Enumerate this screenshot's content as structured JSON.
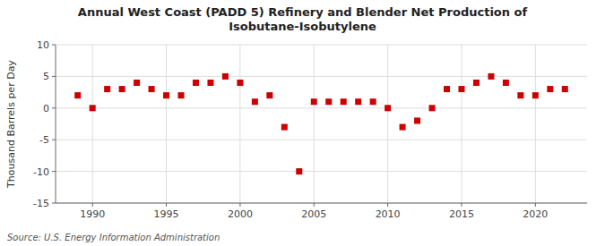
{
  "chart_data": {
    "type": "scatter",
    "title": "Annual West Coast (PADD 5) Refinery and Blender Net Production of Isobutane-Isobutylene",
    "y_label": "Thousand Barrels per Day",
    "source": "Source: U.S. Energy Information Administration",
    "x": [
      1989,
      1990,
      1991,
      1992,
      1993,
      1994,
      1995,
      1996,
      1997,
      1998,
      1999,
      2000,
      2001,
      2002,
      2003,
      2004,
      2005,
      2006,
      2007,
      2008,
      2009,
      2010,
      2011,
      2012,
      2013,
      2014,
      2015,
      2016,
      2017,
      2018,
      2019,
      2020,
      2021,
      2022
    ],
    "values": [
      2.0,
      0.0,
      3.0,
      3.0,
      4.0,
      3.0,
      2.0,
      2.0,
      4.0,
      4.0,
      5.0,
      4.0,
      1.0,
      2.0,
      -3.0,
      -10.0,
      1.0,
      1.0,
      1.0,
      1.0,
      1.0,
      0.0,
      -3.0,
      -2.0,
      0.0,
      3.0,
      3.0,
      4.0,
      5.0,
      4.0,
      2.0,
      2.0,
      3.0,
      3.0
    ],
    "color": "#cc0000",
    "marker": "square",
    "xlim": [
      1987.5,
      2023.5
    ],
    "ylim": [
      -15,
      10
    ],
    "xticks": [
      1990,
      1995,
      2000,
      2005,
      2010,
      2015,
      2020
    ],
    "yticks": [
      -15,
      -10,
      -5,
      0,
      5,
      10
    ],
    "grid": true
  }
}
